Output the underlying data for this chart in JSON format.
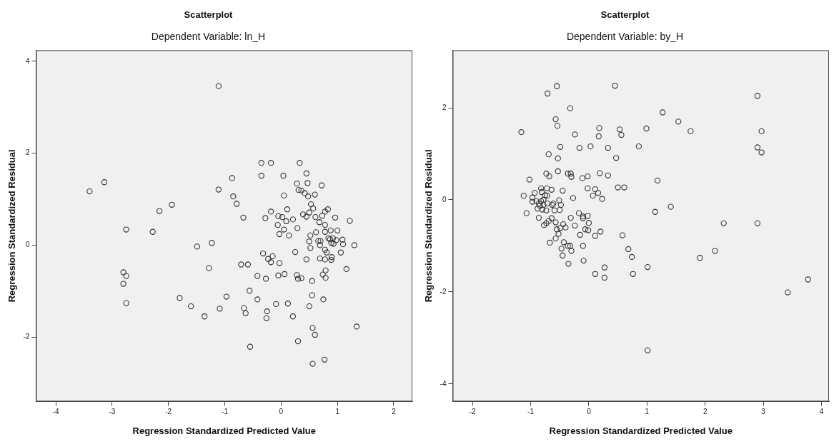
{
  "chart_data": [
    {
      "type": "scatter",
      "title": "Scatterplot",
      "subtitle": "Dependent Variable: ln_H",
      "xlabel": "Regression Standardized Predicted Value",
      "ylabel": "Regression Standardized Residual",
      "xlim": [
        -4.35,
        2.33
      ],
      "ylim": [
        -3.4,
        4.24
      ],
      "xticks": [
        -4,
        -3,
        -2,
        -1,
        0,
        1,
        2
      ],
      "yticks": [
        -2,
        0,
        2,
        4
      ],
      "marker": "circle",
      "series": [
        {
          "color": "#333333",
          "x": [
            -1.11,
            -3.4,
            -3.14,
            -1.11,
            -1.94,
            -2.16,
            -2.75,
            -2.28,
            -1.23,
            -1.49,
            -1.28,
            -2.8,
            -2.75,
            -2.8,
            -2.75,
            -1.8,
            -1.6,
            -1.36,
            -1.09,
            -0.35,
            -0.18,
            0.33,
            -0.35,
            0.04,
            0.45,
            -0.87,
            0.47,
            0.28,
            0.72,
            0.31,
            0.36,
            0.42,
            0.48,
            0.6,
            0.05,
            -0.85,
            -0.79,
            0.53,
            0.57,
            0.11,
            -0.18,
            0.39,
            0.45,
            0.5,
            0.61,
            0.73,
            0.78,
            0.83,
            0.96,
            1.22,
            -0.67,
            -0.28,
            -0.05,
            0.02,
            0.09,
            0.21,
            -0.06,
            0.05,
            -0.03,
            0.14,
            0.29,
            0.68,
            0.78,
            0.62,
            0.78,
            0.52,
            0.5,
            0.52,
            0.66,
            0.7,
            0.69,
            0.88,
            1.0,
            0.84,
            0.87,
            0.92,
            0.98,
            0.89,
            0.93,
            1.09,
            1.1,
            1.3,
            0.78,
            0.81,
            1.06,
            -0.32,
            0.25,
            0.9,
            0.89,
            -0.23,
            -0.15,
            -0.18,
            -0.03,
            0.45,
            0.69,
            0.78,
            -0.71,
            -0.59,
            1.16,
            0.79,
            -0.42,
            -0.27,
            -0.05,
            0.06,
            0.28,
            0.3,
            0.36,
            0.74,
            0.79,
            0.55,
            -0.56,
            -0.97,
            -0.66,
            -0.63,
            -0.42,
            -0.25,
            -0.26,
            -0.09,
            0.12,
            0.21,
            0.5,
            0.55,
            0.75,
            0.56,
            0.6,
            1.34,
            0.3,
            -0.55,
            0.56,
            0.77
          ],
          "values": [
            3.46,
            1.17,
            1.37,
            1.21,
            0.88,
            0.74,
            0.34,
            0.29,
            0.05,
            -0.03,
            -0.5,
            -0.59,
            -0.67,
            -0.84,
            -1.26,
            -1.15,
            -1.33,
            -1.55,
            -1.38,
            1.79,
            1.79,
            1.79,
            1.51,
            1.51,
            1.56,
            1.46,
            1.35,
            1.34,
            1.3,
            1.2,
            1.19,
            1.13,
            1.06,
            1.1,
            1.08,
            1.06,
            0.9,
            0.89,
            0.8,
            0.78,
            0.73,
            0.67,
            0.62,
            0.71,
            0.61,
            0.64,
            0.73,
            0.78,
            0.6,
            0.53,
            0.6,
            0.59,
            0.63,
            0.61,
            0.52,
            0.56,
            0.44,
            0.34,
            0.24,
            0.21,
            0.37,
            0.5,
            0.44,
            0.28,
            0.29,
            0.21,
            0.08,
            -0.06,
            0.09,
            0.09,
            0.0,
            0.32,
            0.32,
            0.15,
            0.13,
            0.15,
            0.11,
            0.05,
            0.03,
            0.12,
            0.02,
            0.0,
            -0.1,
            -0.16,
            -0.16,
            -0.18,
            -0.15,
            -0.26,
            -0.32,
            -0.3,
            -0.24,
            -0.37,
            -0.39,
            -0.31,
            -0.29,
            -0.31,
            -0.42,
            -0.42,
            -0.52,
            -0.55,
            -0.67,
            -0.73,
            -0.66,
            -0.63,
            -0.65,
            -0.73,
            -0.72,
            -0.64,
            -0.71,
            -0.78,
            -0.99,
            -1.12,
            -1.37,
            -1.48,
            -1.18,
            -1.44,
            -1.59,
            -1.28,
            -1.27,
            -1.55,
            -1.33,
            -1.09,
            -1.18,
            -1.8,
            -1.95,
            -1.77,
            -2.09,
            -2.21,
            -2.58,
            -2.49
          ]
        }
      ]
    },
    {
      "type": "scatter",
      "title": "Scatterplot",
      "subtitle": "Dependent Variable: by_H",
      "xlabel": "Regression Standardized Predicted Value",
      "ylabel": "Regression Standardized Residual",
      "xlim": [
        -2.34,
        4.13
      ],
      "ylim": [
        -4.38,
        3.25
      ],
      "xticks": [
        -2,
        -1,
        0,
        1,
        2,
        3,
        4
      ],
      "yticks": [
        -4,
        -2,
        0,
        2
      ],
      "marker": "circle",
      "series": [
        {
          "color": "#333333",
          "x": [
            -0.55,
            -0.71,
            -0.32,
            0.45,
            -1.16,
            -0.57,
            -0.54,
            -0.24,
            0.18,
            0.17,
            0.53,
            0.56,
            -0.49,
            -0.16,
            0.03,
            0.33,
            -0.69,
            -0.53,
            0.47,
            -0.53,
            -0.73,
            -0.68,
            -0.36,
            -0.31,
            -0.3,
            -0.11,
            -0.02,
            0.19,
            0.33,
            -1.02,
            -1.12,
            -1.07,
            -0.93,
            -0.97,
            -0.97,
            -0.82,
            -0.72,
            -0.64,
            -0.81,
            -0.72,
            -0.75,
            -0.45,
            -0.02,
            0.11,
            0.16,
            0.07,
            0.23,
            -0.27,
            -0.51,
            -0.48,
            -0.5,
            -0.9,
            -0.86,
            -0.82,
            -0.78,
            -0.78,
            -0.88,
            -0.84,
            -0.8,
            -0.71,
            -0.73,
            -0.63,
            -0.59,
            -0.61,
            -0.86,
            -0.77,
            -0.73,
            -0.69,
            -0.64,
            -0.57,
            -0.55,
            -0.52,
            -0.49,
            -0.44,
            -0.4,
            -0.67,
            -0.57,
            -0.47,
            -0.43,
            -0.36,
            -0.32,
            -0.3,
            -0.45,
            -0.35,
            -0.31,
            -0.24,
            -0.17,
            -0.1,
            -0.02,
            -0.1,
            0.0,
            -0.01,
            -0.06,
            -0.15,
            -0.1,
            -0.09,
            0.11,
            0.2,
            0.58,
            0.11,
            0.27,
            0.27,
            0.68,
            0.5,
            0.61,
            0.74,
            0.76,
            1.01,
            0.99,
            0.86,
            1.27,
            1.54,
            1.75,
            1.18,
            1.14,
            1.41,
            2.32,
            2.17,
            1.91,
            2.9,
            2.97,
            2.9,
            2.97,
            2.9,
            3.42,
            3.77,
            1.01
          ],
          "values": [
            2.47,
            2.31,
            1.99,
            2.48,
            1.47,
            1.75,
            1.61,
            1.42,
            1.56,
            1.38,
            1.53,
            1.41,
            1.15,
            1.13,
            1.16,
            1.13,
            0.99,
            0.9,
            0.91,
            0.62,
            0.57,
            0.51,
            0.57,
            0.57,
            0.5,
            0.47,
            0.51,
            0.58,
            0.53,
            0.44,
            0.09,
            -0.29,
            0.15,
            0.05,
            -0.04,
            0.25,
            0.25,
            0.22,
            0.17,
            0.09,
            0.1,
            0.2,
            0.25,
            0.23,
            0.15,
            0.09,
            0.02,
            0.04,
            -0.01,
            -0.11,
            -0.22,
            -0.03,
            -0.08,
            -0.03,
            -0.11,
            0.0,
            -0.19,
            -0.13,
            -0.21,
            -0.08,
            -0.23,
            -0.11,
            -0.23,
            -0.08,
            -0.39,
            -0.55,
            -0.51,
            -0.46,
            -0.4,
            -0.49,
            -0.64,
            -0.74,
            -0.61,
            -0.53,
            -0.6,
            -0.93,
            -0.84,
            -1.06,
            -0.92,
            -1.0,
            -1.0,
            -1.11,
            -1.21,
            -1.39,
            -0.39,
            -0.56,
            -0.29,
            -0.36,
            -0.35,
            -0.4,
            -0.5,
            -0.66,
            -0.64,
            -0.76,
            -1.0,
            -1.32,
            -0.78,
            -0.69,
            -0.77,
            -1.61,
            -1.47,
            -1.69,
            -1.07,
            0.27,
            0.27,
            -1.24,
            -1.61,
            -1.46,
            1.55,
            1.16,
            1.9,
            1.7,
            1.49,
            0.42,
            -0.26,
            -0.15,
            -0.51,
            -1.11,
            -1.26,
            2.26,
            1.49,
            1.14,
            1.03,
            -0.51,
            -2.01,
            -1.73,
            -3.27
          ]
        }
      ]
    }
  ]
}
